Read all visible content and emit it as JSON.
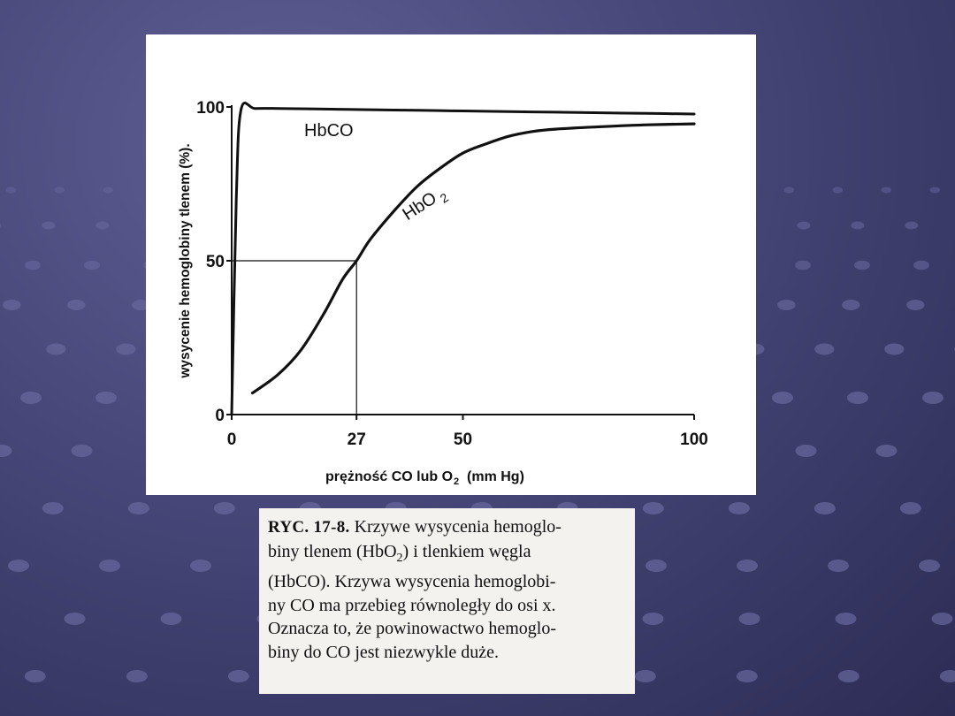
{
  "colors": {
    "background": "#464678",
    "dot": "#6c6ca2",
    "chart_panel": "#ffffff",
    "caption_panel": "#f4f2ee",
    "ink": "#111111"
  },
  "chart_data": {
    "type": "line",
    "title": "",
    "xlabel": "prężność CO lub O",
    "xlabel_sub": "2",
    "xlabel_unit": "(mm Hg)",
    "ylabel": "wysycenie hemoglobiny tlenem (%).",
    "xlim": [
      0,
      100
    ],
    "ylim": [
      0,
      100
    ],
    "x_ticks": [
      "0",
      "27",
      "50",
      "100"
    ],
    "y_ticks": [
      "0",
      "50",
      "100"
    ],
    "grid": false,
    "legend": "none",
    "reference_point": {
      "x": 27,
      "y": 50
    },
    "series": [
      {
        "name": "HbCO",
        "x": [
          0,
          1,
          2,
          5,
          10,
          20,
          30,
          40,
          50,
          60,
          70,
          80,
          90,
          100
        ],
        "y": [
          0,
          70,
          99,
          99.5,
          99.5,
          99.3,
          99.1,
          98.9,
          98.7,
          98.5,
          98.3,
          98.1,
          97.9,
          97.7
        ]
      },
      {
        "name": "HbO",
        "name_sub": "2",
        "x": [
          4.5,
          10,
          15,
          20,
          24,
          27,
          30,
          35,
          40,
          45,
          50,
          55,
          60,
          65,
          70,
          80,
          90,
          100
        ],
        "y": [
          7,
          13,
          21,
          33,
          44,
          50,
          57,
          66,
          74,
          80,
          85,
          88,
          90.5,
          92,
          92.8,
          93.6,
          94.2,
          94.5
        ]
      }
    ]
  },
  "caption": {
    "ryc": "RYC. 17-8.",
    "lines": [
      " Krzywe wysycenia hemoglo-",
      "biny tlenem (HbO",
      "2",
      ") i tlenkiem węgla",
      "(HbCO). Krzywa wysycenia hemoglobi-",
      "ny CO ma przebieg równoległy do osi x.",
      "Oznacza to, że powinowactwo hemoglo-",
      "biny do CO jest niezwykle duże."
    ]
  }
}
